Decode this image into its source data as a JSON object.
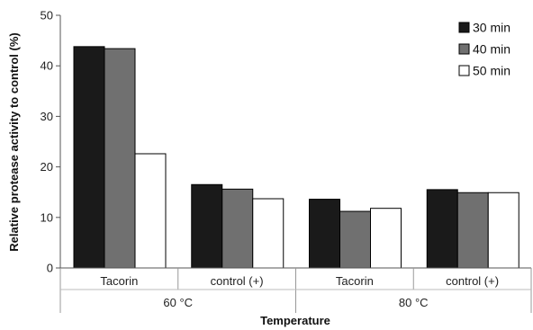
{
  "chart_data": {
    "type": "bar",
    "title": "",
    "xlabel": "Temperature",
    "ylabel": "Relative protease activity to control (%)",
    "ylim": [
      0,
      50
    ],
    "yticks": [
      0,
      10,
      20,
      30,
      40,
      50
    ],
    "grid": false,
    "legend_position": "top-right",
    "categories": [
      "Tacorin",
      "control (+)",
      "Tacorin",
      "control (+)"
    ],
    "groups": [
      {
        "label": "60 °C",
        "categories": [
          "Tacorin",
          "control (+)"
        ]
      },
      {
        "label": "80 °C",
        "categories": [
          "Tacorin",
          "control (+)"
        ]
      }
    ],
    "series": [
      {
        "name": "30 min",
        "color": "#1a1a1a",
        "values": [
          43.8,
          16.5,
          13.6,
          15.5
        ]
      },
      {
        "name": "40 min",
        "color": "#707070",
        "values": [
          43.4,
          15.6,
          11.2,
          14.9
        ]
      },
      {
        "name": "50 min",
        "color": "#ffffff",
        "values": [
          22.6,
          13.7,
          11.8,
          14.9
        ]
      }
    ]
  }
}
